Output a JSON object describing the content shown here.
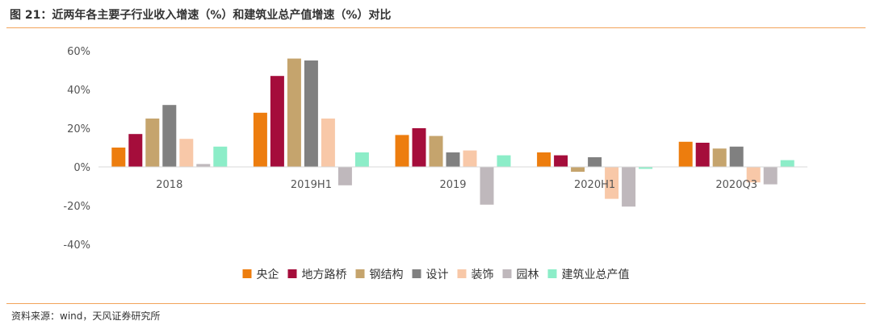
{
  "title": "图 21：近两年各主要子行业收入增速（%）和建筑业总产值增速（%）对比",
  "source": "资料来源：wind，天风证券研究所",
  "chart_data": {
    "type": "bar",
    "title": "图 21：近两年各主要子行业收入增速（%）和建筑业总产值增速（%）对比",
    "xlabel": "",
    "ylabel": "",
    "unit": "%",
    "ylim": [
      -40,
      60
    ],
    "yticks": [
      60,
      40,
      20,
      0,
      -20,
      -40
    ],
    "ytick_labels": [
      "60%",
      "40%",
      "20%",
      "0%",
      "-20%",
      "-40%"
    ],
    "grid": false,
    "legend_position": "bottom",
    "categories": [
      "2018",
      "2019H1",
      "2019",
      "2020H1",
      "2020Q3"
    ],
    "series": [
      {
        "name": "央企",
        "color": "#ed7d0e",
        "values": [
          10,
          28,
          16.5,
          7.5,
          13
        ]
      },
      {
        "name": "地方路桥",
        "color": "#a50d3b",
        "values": [
          17,
          47,
          20,
          6,
          12.5
        ]
      },
      {
        "name": "钢结构",
        "color": "#c5a46d",
        "values": [
          25,
          56,
          16,
          -2.5,
          9.5
        ]
      },
      {
        "name": "设计",
        "color": "#808080",
        "values": [
          32,
          55,
          7.5,
          5,
          10.5
        ]
      },
      {
        "name": "装饰",
        "color": "#f8c8a8",
        "values": [
          14.5,
          25,
          8.5,
          -16.5,
          -8
        ]
      },
      {
        "name": "园林",
        "color": "#bfb8bc",
        "values": [
          1.5,
          -9.5,
          -19.5,
          -20.5,
          -9
        ]
      },
      {
        "name": "建筑业总产值",
        "color": "#8cedc8",
        "values": [
          10.5,
          7.5,
          6,
          -1,
          3.5
        ]
      }
    ]
  }
}
